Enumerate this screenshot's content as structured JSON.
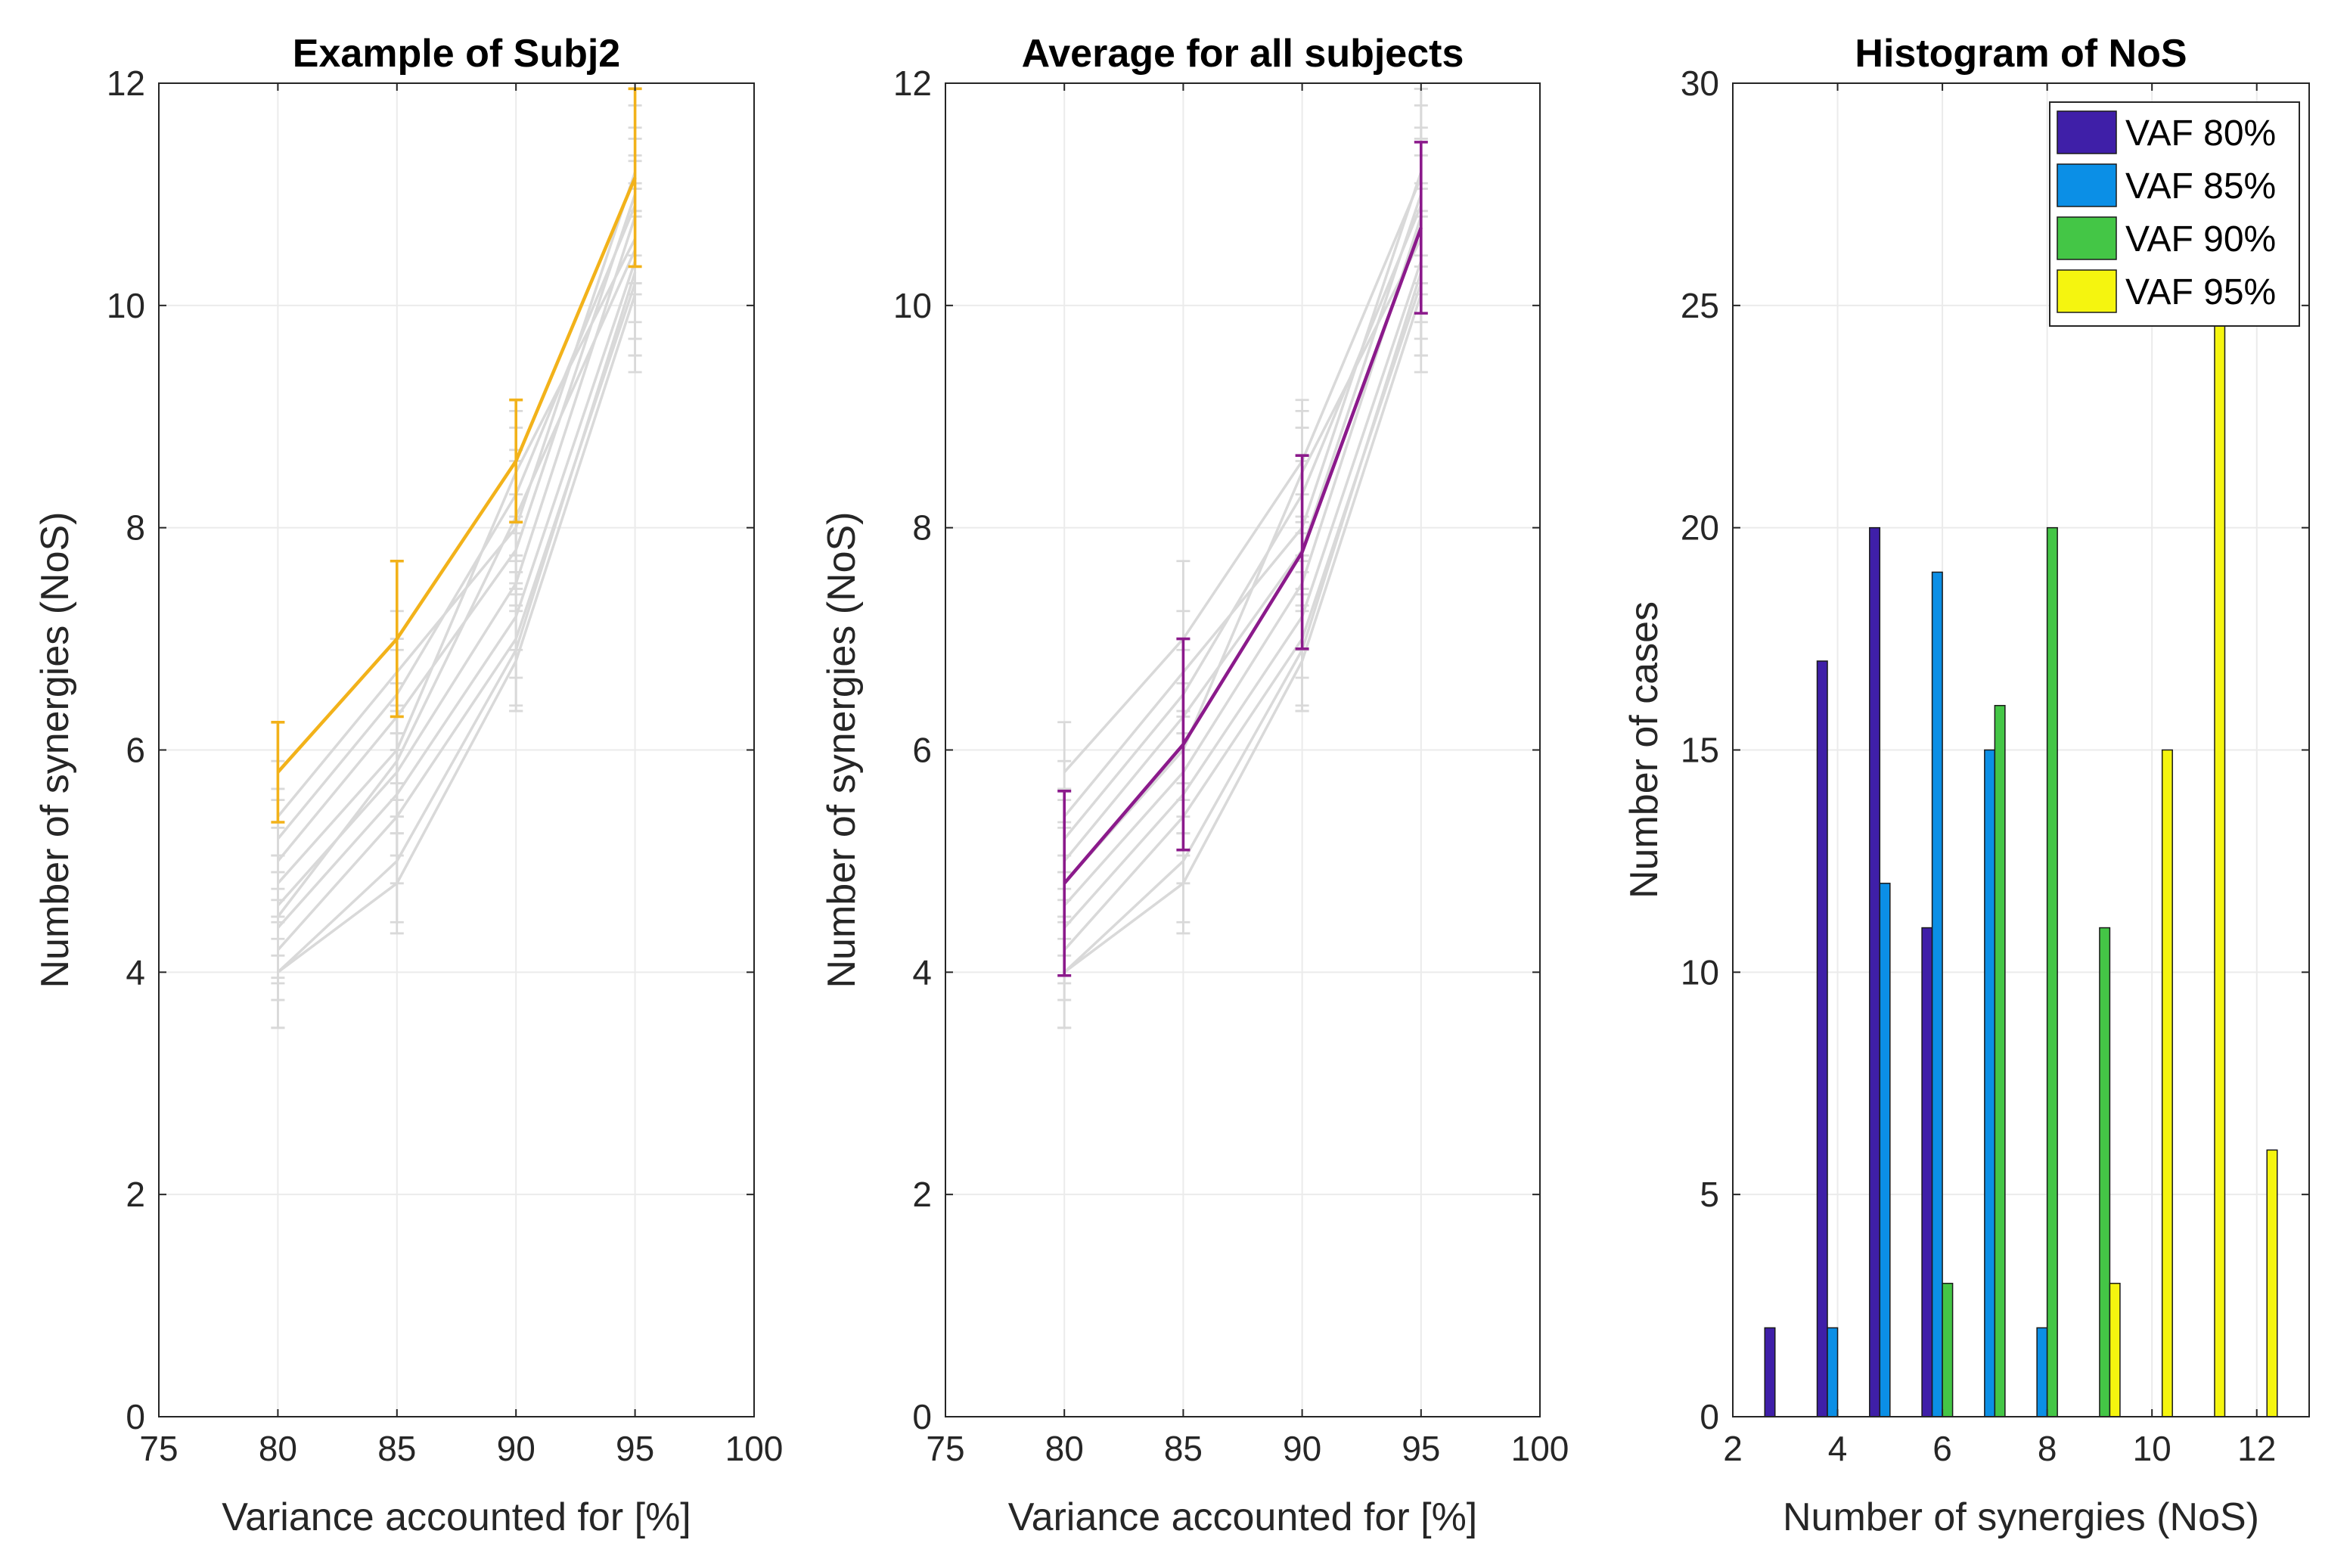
{
  "chart_data": [
    {
      "type": "line",
      "title": "Example of Subj2",
      "xlabel": "Variance accounted for [%]",
      "ylabel": "Number of synergies (NoS)",
      "xlim": [
        75,
        100
      ],
      "ylim": [
        0,
        12
      ],
      "xticks": [
        "75",
        "80",
        "85",
        "90",
        "95",
        "100"
      ],
      "yticks": [
        "0",
        "2",
        "4",
        "6",
        "8",
        "10",
        "12"
      ],
      "grid": true,
      "x": [
        80,
        85,
        90,
        95
      ],
      "highlight_color": "#f2b21a",
      "background_color": "#d9d9d9",
      "highlight": {
        "name": "Subj2",
        "values": [
          5.8,
          7.0,
          8.6,
          11.15
        ],
        "err": [
          0.45,
          0.7,
          0.55,
          0.8
        ]
      },
      "background_series": [
        {
          "values": [
            5.4,
            6.7,
            8.0,
            11.2
          ],
          "err": [
            0.5,
            0.55,
            0.6,
            0.75
          ]
        },
        {
          "values": [
            5.2,
            6.5,
            8.3,
            10.9
          ],
          "err": [
            0.45,
            0.5,
            0.6,
            0.7
          ]
        },
        {
          "values": [
            5.0,
            6.3,
            7.8,
            11.0
          ],
          "err": [
            0.55,
            0.6,
            0.5,
            0.8
          ]
        },
        {
          "values": [
            4.8,
            6.0,
            8.5,
            10.6
          ],
          "err": [
            0.5,
            0.6,
            0.55,
            0.75
          ]
        },
        {
          "values": [
            4.6,
            5.8,
            7.5,
            10.8
          ],
          "err": [
            0.45,
            0.55,
            0.6,
            0.7
          ]
        },
        {
          "values": [
            4.4,
            5.6,
            7.2,
            10.4
          ],
          "err": [
            0.5,
            0.55,
            0.55,
            0.7
          ]
        },
        {
          "values": [
            4.2,
            5.4,
            7.0,
            10.2
          ],
          "err": [
            0.45,
            0.6,
            0.6,
            0.65
          ]
        },
        {
          "values": [
            4.0,
            5.0,
            6.9,
            10.3
          ],
          "err": [
            0.5,
            0.55,
            0.55,
            0.75
          ]
        },
        {
          "values": [
            4.0,
            4.8,
            6.8,
            10.1
          ],
          "err": [
            0.5,
            0.45,
            0.45,
            0.7
          ]
        },
        {
          "values": [
            4.5,
            5.9,
            8.1,
            10.5
          ],
          "err": [
            0.55,
            0.5,
            0.6,
            0.8
          ]
        }
      ]
    },
    {
      "type": "line",
      "title": "Average for all subjects",
      "xlabel": "Variance accounted for [%]",
      "ylabel": "Number of synergies (NoS)",
      "xlim": [
        75,
        100
      ],
      "ylim": [
        0,
        12
      ],
      "xticks": [
        "75",
        "80",
        "85",
        "90",
        "95",
        "100"
      ],
      "yticks": [
        "0",
        "2",
        "4",
        "6",
        "8",
        "10",
        "12"
      ],
      "grid": true,
      "x": [
        80,
        85,
        90,
        95
      ],
      "highlight_color": "#8b1a8b",
      "background_color": "#d9d9d9",
      "highlight": {
        "name": "Average",
        "values": [
          4.8,
          6.05,
          7.78,
          10.7
        ],
        "err": [
          0.83,
          0.95,
          0.87,
          0.77
        ]
      },
      "background_series": [
        {
          "values": [
            5.8,
            7.0,
            8.6,
            11.15
          ],
          "err": [
            0.45,
            0.7,
            0.55,
            0.8
          ]
        },
        {
          "values": [
            5.4,
            6.7,
            8.0,
            11.2
          ],
          "err": [
            0.5,
            0.55,
            0.6,
            0.75
          ]
        },
        {
          "values": [
            5.2,
            6.5,
            8.3,
            10.9
          ],
          "err": [
            0.45,
            0.5,
            0.6,
            0.7
          ]
        },
        {
          "values": [
            5.0,
            6.3,
            7.8,
            11.0
          ],
          "err": [
            0.55,
            0.6,
            0.5,
            0.8
          ]
        },
        {
          "values": [
            4.8,
            6.0,
            8.5,
            10.6
          ],
          "err": [
            0.5,
            0.6,
            0.55,
            0.75
          ]
        },
        {
          "values": [
            4.6,
            5.8,
            7.5,
            10.8
          ],
          "err": [
            0.45,
            0.55,
            0.6,
            0.7
          ]
        },
        {
          "values": [
            4.4,
            5.6,
            7.2,
            10.4
          ],
          "err": [
            0.5,
            0.55,
            0.55,
            0.7
          ]
        },
        {
          "values": [
            4.2,
            5.4,
            7.0,
            10.2
          ],
          "err": [
            0.45,
            0.6,
            0.6,
            0.65
          ]
        },
        {
          "values": [
            4.0,
            5.0,
            6.9,
            10.3
          ],
          "err": [
            0.5,
            0.55,
            0.55,
            0.75
          ]
        },
        {
          "values": [
            4.0,
            4.8,
            6.8,
            10.1
          ],
          "err": [
            0.5,
            0.45,
            0.45,
            0.7
          ]
        }
      ]
    },
    {
      "type": "bar",
      "title": "Histogram of NoS",
      "xlabel": "Number of synergies (NoS)",
      "ylabel": "Number of cases",
      "xlim": [
        2,
        13
      ],
      "ylim": [
        0,
        30
      ],
      "xticks": [
        "2",
        "4",
        "6",
        "8",
        "10",
        "12"
      ],
      "yticks": [
        "0",
        "5",
        "10",
        "15",
        "20",
        "25",
        "30"
      ],
      "grid": true,
      "legend_position": "top-right",
      "categories": [
        3,
        4,
        5,
        6,
        7,
        8,
        9,
        10,
        11,
        12
      ],
      "series": [
        {
          "name": "VAF 80%",
          "color": "#3f1fa8",
          "values": [
            2,
            17,
            20,
            11,
            0,
            0,
            0,
            0,
            0,
            0
          ]
        },
        {
          "name": "VAF 85%",
          "color": "#0b8fe6",
          "values": [
            0,
            2,
            12,
            19,
            15,
            2,
            0,
            0,
            0,
            0
          ]
        },
        {
          "name": "VAF 90%",
          "color": "#44c646",
          "values": [
            0,
            0,
            0,
            3,
            16,
            20,
            11,
            0,
            0,
            0
          ]
        },
        {
          "name": "VAF 95%",
          "color": "#f5f50f",
          "values": [
            0,
            0,
            0,
            0,
            0,
            0,
            3,
            15,
            25,
            6
          ]
        }
      ]
    }
  ]
}
